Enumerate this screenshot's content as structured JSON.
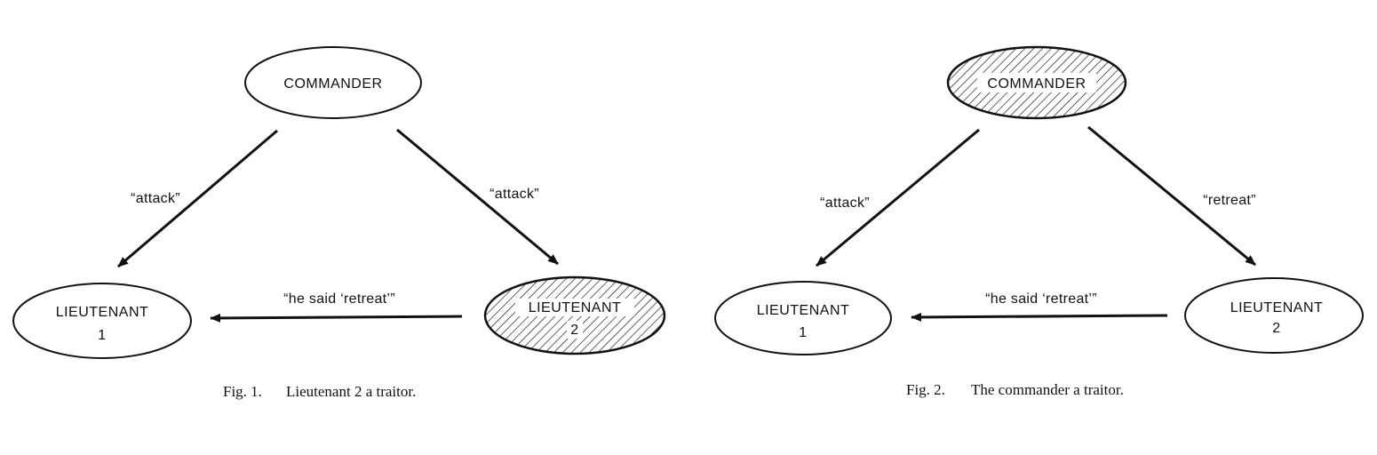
{
  "figures": [
    {
      "caption": {
        "number": "Fig. 1.",
        "text": "Lieutenant 2 a traitor."
      },
      "nodes": {
        "commander": {
          "label": "COMMANDER",
          "traitor": false
        },
        "lieutenant1": {
          "line1": "LIEUTENANT",
          "line2": "1",
          "traitor": false
        },
        "lieutenant2": {
          "line1": "LIEUTENANT",
          "line2": "2",
          "traitor": true
        }
      },
      "messages": {
        "to_lieutenant1": "“attack”",
        "to_lieutenant2": "“attack”",
        "l2_to_l1": "“he said ‘retreat’”"
      }
    },
    {
      "caption": {
        "number": "Fig. 2.",
        "text": "The commander a traitor."
      },
      "nodes": {
        "commander": {
          "label": "COMMANDER",
          "traitor": true
        },
        "lieutenant1": {
          "line1": "LIEUTENANT",
          "line2": "1",
          "traitor": false
        },
        "lieutenant2": {
          "line1": "LIEUTENANT",
          "line2": "2",
          "traitor": false
        }
      },
      "messages": {
        "to_lieutenant1": "“attack”",
        "to_lieutenant2": "“retreat”",
        "l2_to_l1": "“he said ‘retreat’”"
      }
    }
  ],
  "colors": {
    "ink": "#111111",
    "background": "#ffffff"
  }
}
